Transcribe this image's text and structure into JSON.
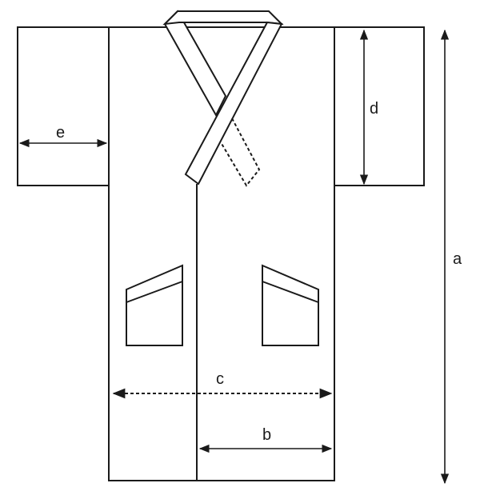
{
  "labels": {
    "a": "a",
    "b": "b",
    "c": "c",
    "d": "d",
    "e": "e"
  },
  "colors": {
    "stroke": "#1a1a1a",
    "background": "#ffffff"
  }
}
